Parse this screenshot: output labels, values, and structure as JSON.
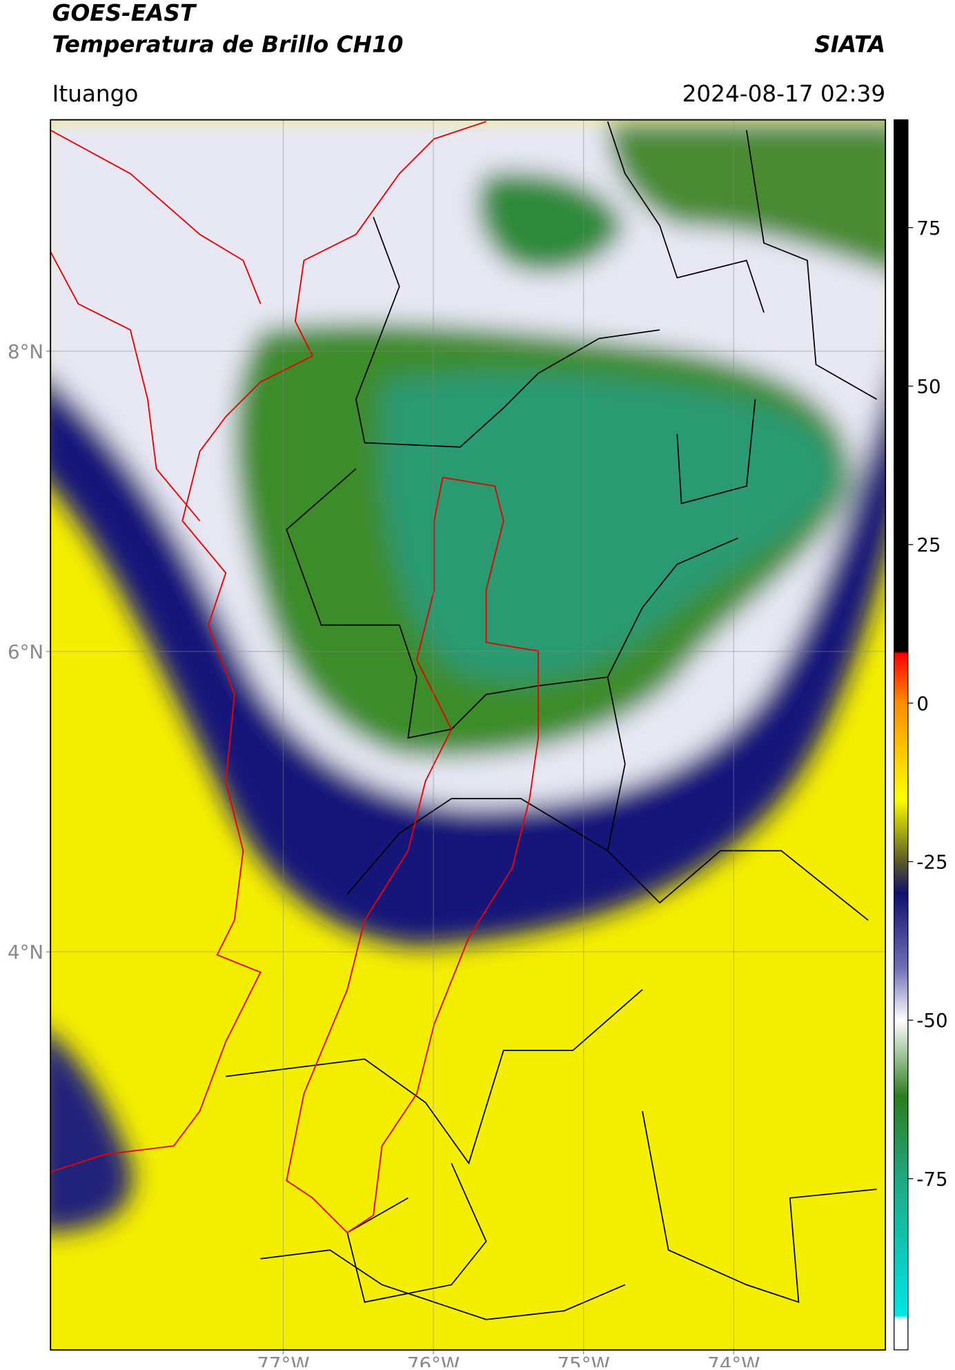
{
  "chart_data": {
    "type": "map",
    "title": "GOES-EAST",
    "subtitle": "Temperatura de Brillo CH10",
    "source": "SIATA",
    "region": "Ituango",
    "datetime": "2024-08-17 02:39",
    "xlim": [
      -78.55,
      -72.99
    ],
    "ylim": [
      1.35,
      9.54
    ],
    "xticks": [
      {
        "value": -77,
        "label": "77°W"
      },
      {
        "value": -76,
        "label": "76°W"
      },
      {
        "value": -75,
        "label": "75°W"
      },
      {
        "value": -74,
        "label": "74°W"
      }
    ],
    "yticks": [
      {
        "value": 8,
        "label": "8°N"
      },
      {
        "value": 6,
        "label": "6°N"
      },
      {
        "value": 4,
        "label": "4°N"
      }
    ],
    "grid": true,
    "colorbar": {
      "lim": [
        -102,
        92
      ],
      "ticks": [
        75,
        50,
        25,
        0,
        -25,
        -50,
        -75
      ]
    }
  }
}
